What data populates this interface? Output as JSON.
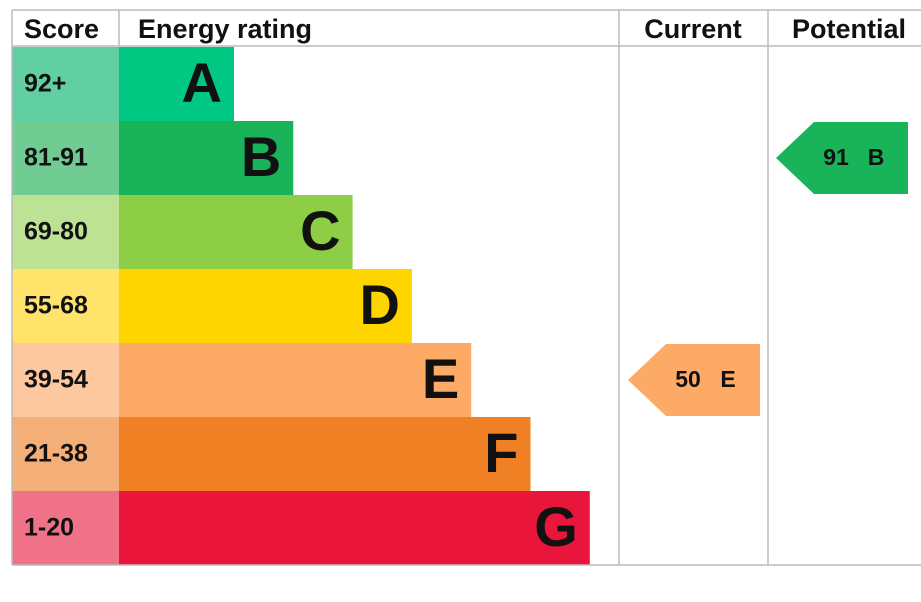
{
  "header": {
    "score": "Score",
    "rating": "Energy rating",
    "current": "Current",
    "potential": "Potential"
  },
  "bands": [
    {
      "score": "92+",
      "letter": "A",
      "color": "#00c781",
      "score_color": "#62cfa3"
    },
    {
      "score": "81-91",
      "letter": "B",
      "color": "#19b459",
      "score_color": "#70cc93"
    },
    {
      "score": "69-80",
      "letter": "C",
      "color": "#8dce46",
      "score_color": "#bde293"
    },
    {
      "score": "55-68",
      "letter": "D",
      "color": "#ffd500",
      "score_color": "#ffe36a"
    },
    {
      "score": "39-54",
      "letter": "E",
      "color": "#fcaa65",
      "score_color": "#fdc8a0"
    },
    {
      "score": "21-38",
      "letter": "F",
      "color": "#ef8023",
      "score_color": "#f4ae78"
    },
    {
      "score": "1-20",
      "letter": "G",
      "color": "#e9153b",
      "score_color": "#f07289"
    }
  ],
  "current": {
    "value": 50,
    "letter": "E"
  },
  "potential": {
    "value": 91,
    "letter": "B"
  }
}
